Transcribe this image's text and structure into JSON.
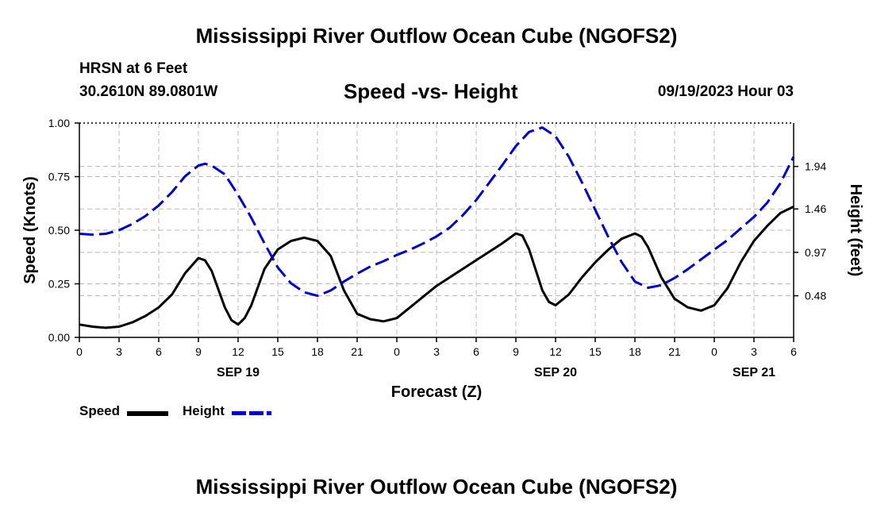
{
  "title": "Mississippi River Outflow Ocean Cube (NGOFS2)",
  "title_bottom": "Mississippi River Outflow Ocean Cube (NGOFS2)",
  "station": "HRSN at 6 Feet",
  "coordinates": "30.2610N  89.0801W",
  "subtitle": "Speed -vs- Height",
  "datetime": "09/19/2023 Hour 03",
  "legend": {
    "speed": "Speed",
    "height": "Height"
  },
  "colors": {
    "speed": "#000000",
    "height": "#0000cc",
    "grid": "#b8b8b8"
  },
  "chart_data": {
    "type": "line",
    "xlabel": "Forecast (Z)",
    "ylabel_left": "Speed (Knots)",
    "ylabel_right": "Height (feet)",
    "x_range_hours": [
      0,
      54
    ],
    "x_ticks": [
      {
        "h": 0,
        "label": "0"
      },
      {
        "h": 3,
        "label": "3"
      },
      {
        "h": 6,
        "label": "6"
      },
      {
        "h": 9,
        "label": "9"
      },
      {
        "h": 12,
        "label": "12"
      },
      {
        "h": 15,
        "label": "15"
      },
      {
        "h": 18,
        "label": "18"
      },
      {
        "h": 21,
        "label": "21"
      },
      {
        "h": 24,
        "label": "0"
      },
      {
        "h": 27,
        "label": "3"
      },
      {
        "h": 30,
        "label": "6"
      },
      {
        "h": 33,
        "label": "9"
      },
      {
        "h": 36,
        "label": "12"
      },
      {
        "h": 39,
        "label": "15"
      },
      {
        "h": 42,
        "label": "18"
      },
      {
        "h": 45,
        "label": "21"
      },
      {
        "h": 48,
        "label": "0"
      },
      {
        "h": 51,
        "label": "3"
      },
      {
        "h": 54,
        "label": "6"
      }
    ],
    "day_labels": [
      {
        "h": 12,
        "label": "SEP 19"
      },
      {
        "h": 36,
        "label": "SEP 20"
      },
      {
        "h": 51,
        "label": "SEP 21"
      }
    ],
    "ylim_left": [
      0,
      1
    ],
    "y_ticks_left": [
      "0.00",
      "0.25",
      "0.50",
      "0.75",
      "1.00"
    ],
    "ylim_right": [
      0.01,
      2.43
    ],
    "y_ticks_right": [
      {
        "v": 0.48,
        "label": "0.48"
      },
      {
        "v": 0.97,
        "label": "0.97"
      },
      {
        "v": 1.46,
        "label": "1.46"
      },
      {
        "v": 1.94,
        "label": "1.94"
      }
    ],
    "series": [
      {
        "name": "Speed",
        "axis": "left",
        "style": "solid",
        "points": [
          [
            0,
            0.06
          ],
          [
            1,
            0.05
          ],
          [
            2,
            0.045
          ],
          [
            3,
            0.05
          ],
          [
            4,
            0.07
          ],
          [
            5,
            0.1
          ],
          [
            6,
            0.14
          ],
          [
            7,
            0.2
          ],
          [
            8,
            0.3
          ],
          [
            9,
            0.37
          ],
          [
            9.5,
            0.36
          ],
          [
            10,
            0.31
          ],
          [
            11,
            0.14
          ],
          [
            11.5,
            0.08
          ],
          [
            12,
            0.06
          ],
          [
            12.5,
            0.09
          ],
          [
            13,
            0.15
          ],
          [
            14,
            0.32
          ],
          [
            15,
            0.41
          ],
          [
            16,
            0.45
          ],
          [
            17,
            0.465
          ],
          [
            18,
            0.45
          ],
          [
            19,
            0.38
          ],
          [
            20,
            0.22
          ],
          [
            21,
            0.11
          ],
          [
            22,
            0.085
          ],
          [
            23,
            0.075
          ],
          [
            24,
            0.09
          ],
          [
            25,
            0.14
          ],
          [
            26,
            0.19
          ],
          [
            27,
            0.24
          ],
          [
            28,
            0.28
          ],
          [
            29,
            0.32
          ],
          [
            30,
            0.36
          ],
          [
            31,
            0.4
          ],
          [
            32,
            0.44
          ],
          [
            33,
            0.485
          ],
          [
            33.5,
            0.475
          ],
          [
            34,
            0.41
          ],
          [
            35,
            0.22
          ],
          [
            35.5,
            0.165
          ],
          [
            36,
            0.15
          ],
          [
            37,
            0.2
          ],
          [
            38,
            0.28
          ],
          [
            39,
            0.35
          ],
          [
            40,
            0.41
          ],
          [
            41,
            0.46
          ],
          [
            42,
            0.485
          ],
          [
            42.5,
            0.47
          ],
          [
            43,
            0.42
          ],
          [
            44,
            0.28
          ],
          [
            45,
            0.18
          ],
          [
            46,
            0.14
          ],
          [
            47,
            0.125
          ],
          [
            48,
            0.15
          ],
          [
            49,
            0.23
          ],
          [
            50,
            0.35
          ],
          [
            51,
            0.45
          ],
          [
            52,
            0.52
          ],
          [
            53,
            0.58
          ],
          [
            54,
            0.61
          ]
        ]
      },
      {
        "name": "Height",
        "axis": "right",
        "style": "dashed",
        "points": [
          [
            0,
            1.18
          ],
          [
            1,
            1.17
          ],
          [
            2,
            1.18
          ],
          [
            3,
            1.22
          ],
          [
            4,
            1.29
          ],
          [
            5,
            1.38
          ],
          [
            6,
            1.5
          ],
          [
            7,
            1.65
          ],
          [
            8,
            1.83
          ],
          [
            9,
            1.95
          ],
          [
            9.5,
            1.97
          ],
          [
            10,
            1.95
          ],
          [
            11,
            1.85
          ],
          [
            12,
            1.62
          ],
          [
            13,
            1.36
          ],
          [
            14,
            1.07
          ],
          [
            15,
            0.8
          ],
          [
            16,
            0.62
          ],
          [
            17,
            0.52
          ],
          [
            18,
            0.48
          ],
          [
            19,
            0.54
          ],
          [
            20,
            0.64
          ],
          [
            21,
            0.73
          ],
          [
            22,
            0.81
          ],
          [
            23,
            0.87
          ],
          [
            24,
            0.94
          ],
          [
            25,
            1.0
          ],
          [
            26,
            1.07
          ],
          [
            27,
            1.15
          ],
          [
            28,
            1.25
          ],
          [
            29,
            1.39
          ],
          [
            30,
            1.56
          ],
          [
            31,
            1.76
          ],
          [
            32,
            1.96
          ],
          [
            33,
            2.17
          ],
          [
            34,
            2.33
          ],
          [
            35,
            2.38
          ],
          [
            36,
            2.28
          ],
          [
            37,
            2.05
          ],
          [
            38,
            1.76
          ],
          [
            39,
            1.45
          ],
          [
            40,
            1.14
          ],
          [
            41,
            0.86
          ],
          [
            42,
            0.64
          ],
          [
            43,
            0.57
          ],
          [
            44,
            0.6
          ],
          [
            45,
            0.68
          ],
          [
            46,
            0.78
          ],
          [
            47,
            0.89
          ],
          [
            48,
            1.0
          ],
          [
            49,
            1.11
          ],
          [
            50,
            1.24
          ],
          [
            51,
            1.37
          ],
          [
            52,
            1.53
          ],
          [
            53,
            1.75
          ],
          [
            54,
            2.05
          ]
        ]
      }
    ]
  }
}
